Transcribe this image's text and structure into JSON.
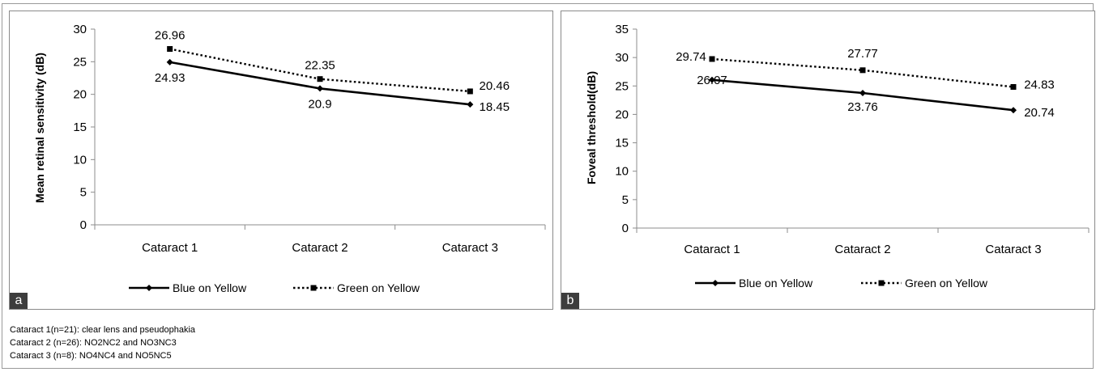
{
  "chart_data": [
    {
      "type": "line",
      "panel_label": "a",
      "categories": [
        "Cataract 1",
        "Cataract 2",
        "Cataract 3"
      ],
      "ylabel": "Mean retinal sensitivity (dB)",
      "xlabel": "",
      "ylim": [
        0,
        30
      ],
      "yticks": [
        0,
        5,
        10,
        15,
        20,
        25,
        30
      ],
      "grid": false,
      "legend_position": "bottom",
      "series": [
        {
          "name": "Blue on Yellow",
          "values": [
            24.93,
            20.9,
            18.45
          ],
          "labels": [
            "24.93",
            "20.9",
            "18.45"
          ],
          "style": "solid",
          "marker": "diamond",
          "color": "#000000"
        },
        {
          "name": "Green on Yellow",
          "values": [
            26.96,
            22.35,
            20.46
          ],
          "labels": [
            "26.96",
            "22.35",
            "20.46"
          ],
          "style": "dotted",
          "marker": "square",
          "color": "#000000"
        }
      ]
    },
    {
      "type": "line",
      "panel_label": "b",
      "categories": [
        "Cataract 1",
        "Cataract 2",
        "Cataract 3"
      ],
      "ylabel": "Foveal threshold(dB)",
      "xlabel": "",
      "ylim": [
        0,
        35
      ],
      "yticks": [
        0,
        5,
        10,
        15,
        20,
        25,
        30,
        35
      ],
      "grid": false,
      "legend_position": "bottom",
      "series": [
        {
          "name": "Blue on Yellow",
          "values": [
            26.07,
            23.76,
            20.74
          ],
          "labels": [
            "26.07",
            "23.76",
            "20.74"
          ],
          "style": "solid",
          "marker": "diamond",
          "color": "#000000"
        },
        {
          "name": "Green on Yellow",
          "values": [
            29.74,
            27.77,
            24.83
          ],
          "labels": [
            "29.74",
            "27.77",
            "24.83"
          ],
          "style": "dotted",
          "marker": "square",
          "color": "#000000"
        }
      ]
    }
  ],
  "footnotes": [
    "Cataract 1(n=21): clear lens and pseudophakia",
    "Cataract 2 (n=26): NO2NC2 and NO3NC3",
    "Cataract 3 (n=8): NO4NC4 and NO5NC5"
  ]
}
